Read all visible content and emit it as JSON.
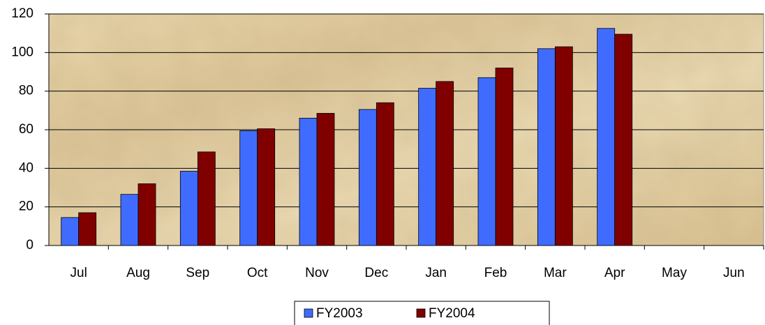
{
  "chart_data": {
    "type": "bar",
    "categories": [
      "Jul",
      "Aug",
      "Sep",
      "Oct",
      "Nov",
      "Dec",
      "Jan",
      "Feb",
      "Mar",
      "Apr",
      "May",
      "Jun"
    ],
    "series": [
      {
        "name": "FY2003",
        "color": "#3f6cff",
        "values": [
          14.5,
          26.5,
          38.5,
          59.5,
          66,
          70.5,
          81.5,
          87,
          102,
          112.5,
          null,
          null
        ]
      },
      {
        "name": "FY2004",
        "color": "#800000",
        "values": [
          17,
          32,
          48.5,
          60.5,
          68.5,
          74,
          85,
          92,
          103,
          109.5,
          null,
          null
        ]
      }
    ],
    "ylim": [
      0,
      120
    ],
    "yticks": [
      0,
      20,
      40,
      60,
      80,
      100,
      120
    ],
    "grid": true,
    "legend": "bottom"
  }
}
